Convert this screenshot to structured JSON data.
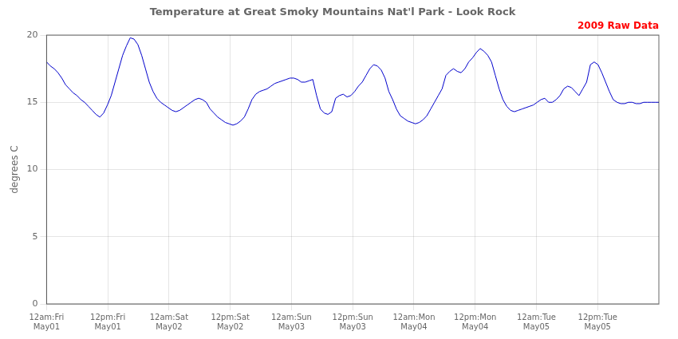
{
  "chart_data": {
    "type": "line",
    "title": "Temperature at Great Smoky Mountains Nat'l Park - Look Rock",
    "annotations": [
      {
        "text": "2009 Raw Data",
        "color": "red"
      }
    ],
    "ylabel": "degrees C",
    "color": "#0000cc",
    "grid": true,
    "xlim": [
      0,
      120
    ],
    "xticks": [
      {
        "value": 0,
        "label": "12am:Fri\nMay01"
      },
      {
        "value": 12,
        "label": "12pm:Fri\nMay01"
      },
      {
        "value": 24,
        "label": "12am:Sat\nMay02"
      },
      {
        "value": 36,
        "label": "12pm:Sat\nMay02"
      },
      {
        "value": 48,
        "label": "12am:Sun\nMay03"
      },
      {
        "value": 60,
        "label": "12pm:Sun\nMay03"
      },
      {
        "value": 72,
        "label": "12am:Mon\nMay04"
      },
      {
        "value": 84,
        "label": "12pm:Mon\nMay04"
      },
      {
        "value": 96,
        "label": "12am:Tue\nMay05"
      },
      {
        "value": 108,
        "label": "12pm:Tue\nMay05"
      }
    ],
    "ylim": [
      0,
      20
    ],
    "yticks": [
      0,
      5,
      10,
      15,
      20
    ],
    "x": [
      0,
      0.745,
      1.491,
      2.236,
      2.981,
      3.727,
      4.472,
      5.217,
      5.963,
      6.708,
      7.453,
      8.199,
      8.944,
      9.689,
      10.435,
      11.18,
      11.925,
      12.671,
      13.416,
      14.161,
      14.907,
      15.652,
      16.398,
      17.143,
      17.888,
      18.634,
      19.379,
      20.124,
      20.87,
      21.615,
      22.36,
      23.106,
      23.851,
      24.596,
      25.342,
      26.087,
      26.832,
      27.578,
      28.323,
      29.068,
      29.814,
      30.559,
      31.304,
      32.05,
      32.795,
      33.54,
      34.286,
      35.031,
      35.776,
      36.522,
      37.267,
      38.012,
      38.758,
      39.503,
      40.248,
      40.994,
      41.739,
      42.484,
      43.23,
      43.975,
      44.72,
      45.466,
      46.211,
      46.957,
      47.702,
      48.447,
      49.193,
      49.938,
      50.683,
      51.429,
      52.174,
      52.919,
      53.665,
      54.41,
      55.155,
      55.901,
      56.646,
      57.391,
      58.137,
      58.882,
      59.627,
      60.373,
      61.118,
      61.863,
      62.609,
      63.354,
      64.099,
      64.845,
      65.59,
      66.335,
      67.081,
      67.826,
      68.571,
      69.317,
      70.062,
      70.807,
      71.553,
      72.298,
      73.043,
      73.789,
      74.534,
      75.28,
      76.025,
      76.77,
      77.516,
      78.261,
      79.006,
      79.752,
      80.497,
      81.242,
      81.988,
      82.733,
      83.478,
      84.224,
      84.969,
      85.714,
      86.46,
      87.205,
      87.95,
      88.696,
      89.441,
      90.186,
      90.932,
      91.677,
      92.422,
      93.168,
      93.913,
      94.658,
      95.404,
      96.149,
      96.894,
      97.64,
      98.385,
      99.13,
      99.876,
      100.621,
      101.366,
      102.112,
      102.857,
      103.602,
      104.348,
      105.093,
      105.839,
      106.584,
      107.329,
      108.075,
      108.82,
      109.565,
      110.311,
      111.056,
      111.801,
      112.547,
      113.292,
      114.037,
      114.783,
      115.528,
      116.273,
      117.019,
      117.764,
      118.509,
      119.255,
      120
    ],
    "values": [
      18.0,
      17.7,
      17.5,
      17.2,
      16.8,
      16.3,
      16.0,
      15.7,
      15.5,
      15.2,
      15.0,
      14.7,
      14.4,
      14.1,
      13.9,
      14.2,
      14.8,
      15.5,
      16.5,
      17.5,
      18.5,
      19.2,
      19.8,
      19.7,
      19.3,
      18.5,
      17.5,
      16.5,
      15.8,
      15.3,
      15.0,
      14.8,
      14.6,
      14.4,
      14.3,
      14.4,
      14.6,
      14.8,
      15.0,
      15.2,
      15.3,
      15.2,
      15.0,
      14.5,
      14.2,
      13.9,
      13.7,
      13.5,
      13.4,
      13.3,
      13.4,
      13.6,
      13.9,
      14.5,
      15.2,
      15.6,
      15.8,
      15.9,
      16.0,
      16.2,
      16.4,
      16.5,
      16.6,
      16.7,
      16.8,
      16.8,
      16.7,
      16.5,
      16.5,
      16.6,
      16.7,
      15.5,
      14.5,
      14.2,
      14.1,
      14.3,
      15.3,
      15.5,
      15.6,
      15.4,
      15.5,
      15.8,
      16.2,
      16.5,
      17.0,
      17.5,
      17.8,
      17.7,
      17.4,
      16.8,
      15.8,
      15.2,
      14.5,
      14.0,
      13.8,
      13.6,
      13.5,
      13.4,
      13.5,
      13.7,
      14.0,
      14.5,
      15.0,
      15.5,
      16.0,
      17.0,
      17.3,
      17.5,
      17.3,
      17.2,
      17.5,
      18.0,
      18.3,
      18.7,
      19.0,
      18.8,
      18.5,
      18.0,
      17.0,
      16.0,
      15.2,
      14.7,
      14.4,
      14.3,
      14.4,
      14.5,
      14.6,
      14.7,
      14.8,
      15.0,
      15.2,
      15.3,
      15.0,
      15.0,
      15.2,
      15.5,
      16.0,
      16.2,
      16.1,
      15.8,
      15.5,
      16.0,
      16.5,
      17.8,
      18.0,
      17.8,
      17.2,
      16.5,
      15.8,
      15.2,
      15.0,
      14.9,
      14.9,
      15.0,
      15.0,
      14.9,
      14.9,
      15.0,
      15.0,
      15.0,
      15.0,
      15.0
    ]
  }
}
